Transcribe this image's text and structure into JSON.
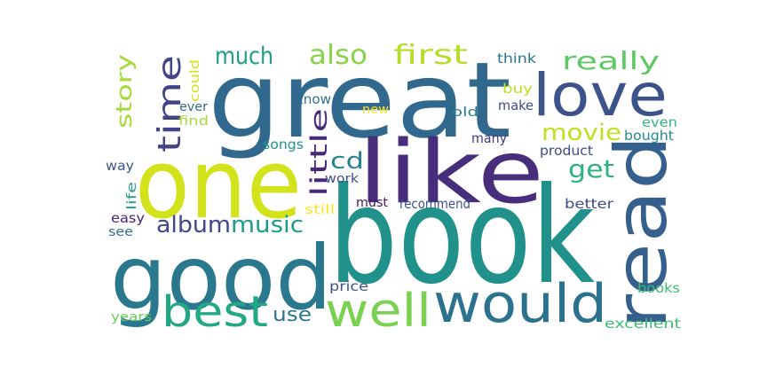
{
  "word_cloud": {
    "words": [
      {
        "text": "great",
        "color": "#31688e"
      },
      {
        "text": "book",
        "color": "#21918c"
      },
      {
        "text": "one",
        "color": "#d2e21b"
      },
      {
        "text": "like",
        "color": "#472d7b"
      },
      {
        "text": "good",
        "color": "#2a788e"
      },
      {
        "text": "read",
        "color": "#355f8d"
      },
      {
        "text": "love",
        "color": "#3b528b"
      },
      {
        "text": "would",
        "color": "#2c728e"
      },
      {
        "text": "well",
        "color": "#7ad151"
      },
      {
        "text": "best",
        "color": "#22a884"
      },
      {
        "text": "time",
        "color": "#414487"
      },
      {
        "text": "story",
        "color": "#a5db36"
      },
      {
        "text": "much",
        "color": "#1f9e89"
      },
      {
        "text": "also",
        "color": "#86d549"
      },
      {
        "text": "first",
        "color": "#b5de2b"
      },
      {
        "text": "really",
        "color": "#5ec962"
      },
      {
        "text": "movie",
        "color": "#c2df23"
      },
      {
        "text": "get",
        "color": "#2db27d"
      },
      {
        "text": "cd",
        "color": "#26828e"
      },
      {
        "text": "little",
        "color": "#482878"
      },
      {
        "text": "album",
        "color": "#3e4989"
      },
      {
        "text": "music",
        "color": "#1e9b8a"
      },
      {
        "text": "use",
        "color": "#2a768e"
      },
      {
        "text": "think",
        "color": "#2c728e"
      },
      {
        "text": "could",
        "color": "#d8e219"
      },
      {
        "text": "know",
        "color": "#2b758e"
      },
      {
        "text": "buy",
        "color": "#bddf26"
      },
      {
        "text": "new",
        "color": "#fde725"
      },
      {
        "text": "old",
        "color": "#277f8e"
      },
      {
        "text": "make",
        "color": "#3e4c8a"
      },
      {
        "text": "even",
        "color": "#35b779"
      },
      {
        "text": "ever",
        "color": "#2f6c8e"
      },
      {
        "text": "find",
        "color": "#a8db34"
      },
      {
        "text": "bought",
        "color": "#24878e"
      },
      {
        "text": "songs",
        "color": "#1f948c"
      },
      {
        "text": "many",
        "color": "#443983"
      },
      {
        "text": "product",
        "color": "#3e4a89"
      },
      {
        "text": "way",
        "color": "#38588c"
      },
      {
        "text": "life",
        "color": "#1fa088"
      },
      {
        "text": "work",
        "color": "#3c4f8a"
      },
      {
        "text": "easy",
        "color": "#482576"
      },
      {
        "text": "still",
        "color": "#fde725"
      },
      {
        "text": "must",
        "color": "#471164"
      },
      {
        "text": "recommend",
        "color": "#3b518b"
      },
      {
        "text": "better",
        "color": "#3e4a89"
      },
      {
        "text": "see",
        "color": "#2c728e"
      },
      {
        "text": "price",
        "color": "#3b528b"
      },
      {
        "text": "books",
        "color": "#3dbc74"
      },
      {
        "text": "years",
        "color": "#6ccd5a"
      },
      {
        "text": "excellent",
        "color": "#3dbc74"
      }
    ]
  }
}
